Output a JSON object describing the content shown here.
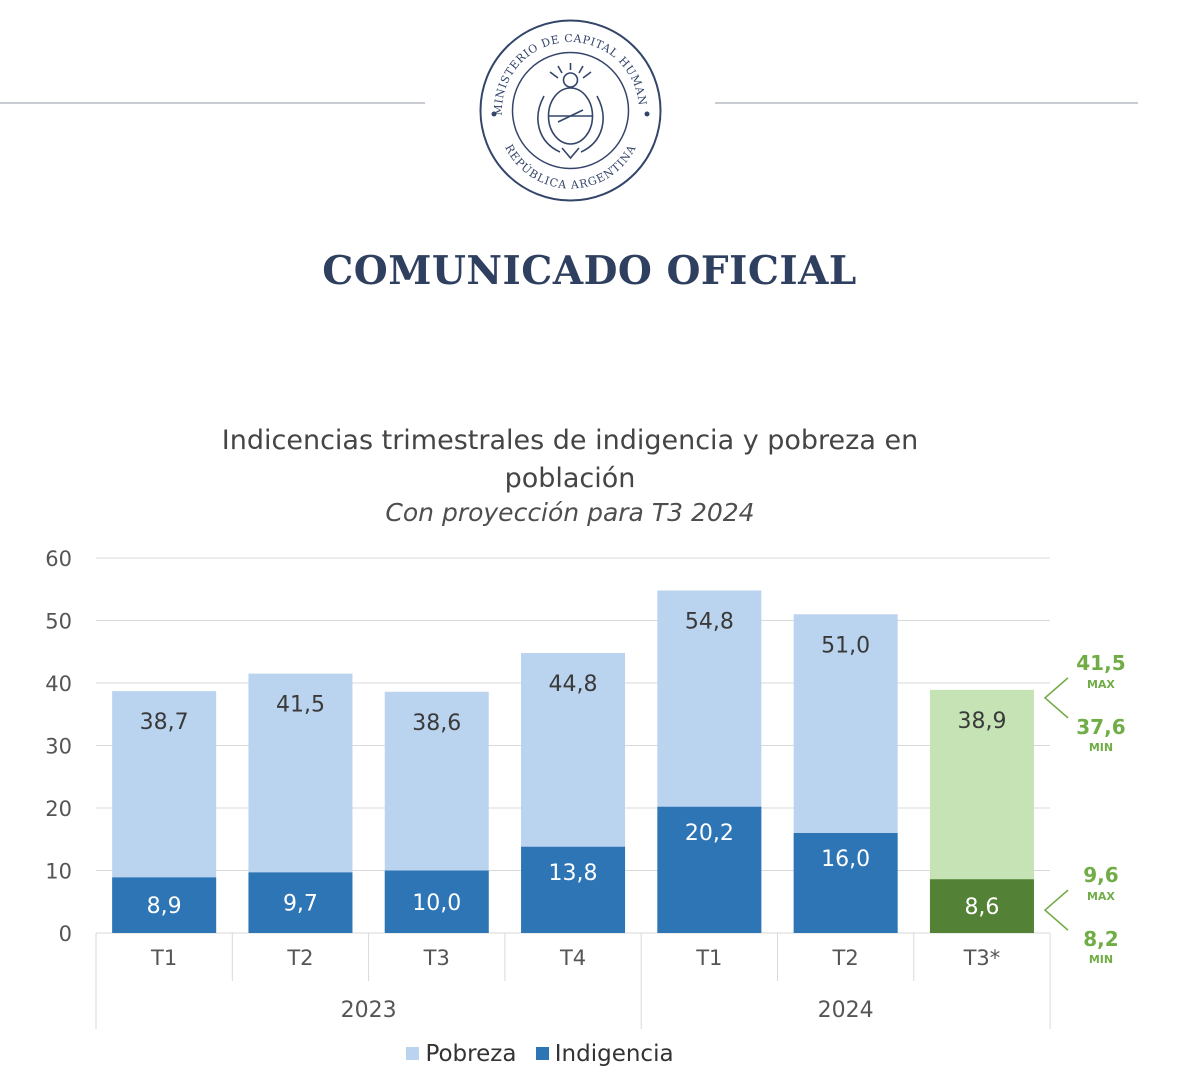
{
  "header": {
    "seal_text_top": "MINISTERIO DE CAPITAL HUMANO",
    "seal_text_bottom": "REPÚBLICA ARGENTINA",
    "title": "COMUNICADO OFICIAL"
  },
  "chart_data": {
    "type": "bar",
    "stacked": false,
    "title_line1": "Indicencias trimestrales de indigencia y pobreza en",
    "title_line2": "población",
    "subtitle": "Con proyección para T3 2024",
    "categories": [
      "T1",
      "T2",
      "T3",
      "T4",
      "T1",
      "T2",
      "T3*"
    ],
    "groups": [
      {
        "label": "2023",
        "span": 4
      },
      {
        "label": "2024",
        "span": 3
      }
    ],
    "series": [
      {
        "name": "Pobreza",
        "values": [
          38.7,
          41.5,
          38.6,
          44.8,
          54.8,
          51.0,
          38.9
        ],
        "labels": [
          "38,7",
          "41,5",
          "38,6",
          "44,8",
          "54,8",
          "51,0",
          "38,9"
        ],
        "color": "#bad3ee",
        "projection_color": "#c5e3b4"
      },
      {
        "name": "Indigencia",
        "values": [
          8.9,
          9.7,
          10.0,
          13.8,
          20.2,
          16.0,
          8.6
        ],
        "labels": [
          "8,9",
          "9,7",
          "10,0",
          "13,8",
          "20,2",
          "16,0",
          "8,6"
        ],
        "color": "#2e75b6",
        "projection_color": "#538135"
      }
    ],
    "projection_index": 6,
    "projection_ranges": [
      {
        "series": "Pobreza",
        "max_value": 41.5,
        "min_value": 37.6,
        "max": "41,5",
        "min": "37,6",
        "max_label": "MAX",
        "min_label": "MIN"
      },
      {
        "series": "Indigencia",
        "max_value": 9.6,
        "min_value": 8.2,
        "max": "9,6",
        "min": "8,2",
        "max_label": "MAX",
        "min_label": "MIN"
      }
    ],
    "ylim": [
      0,
      60
    ],
    "yticks": [
      0,
      10,
      20,
      30,
      40,
      50,
      60
    ],
    "grid": true,
    "legend_position": "bottom",
    "colors": {
      "range_text": "#70ad47",
      "axis_text": "#555555",
      "grid": "#d9d9d9"
    }
  }
}
